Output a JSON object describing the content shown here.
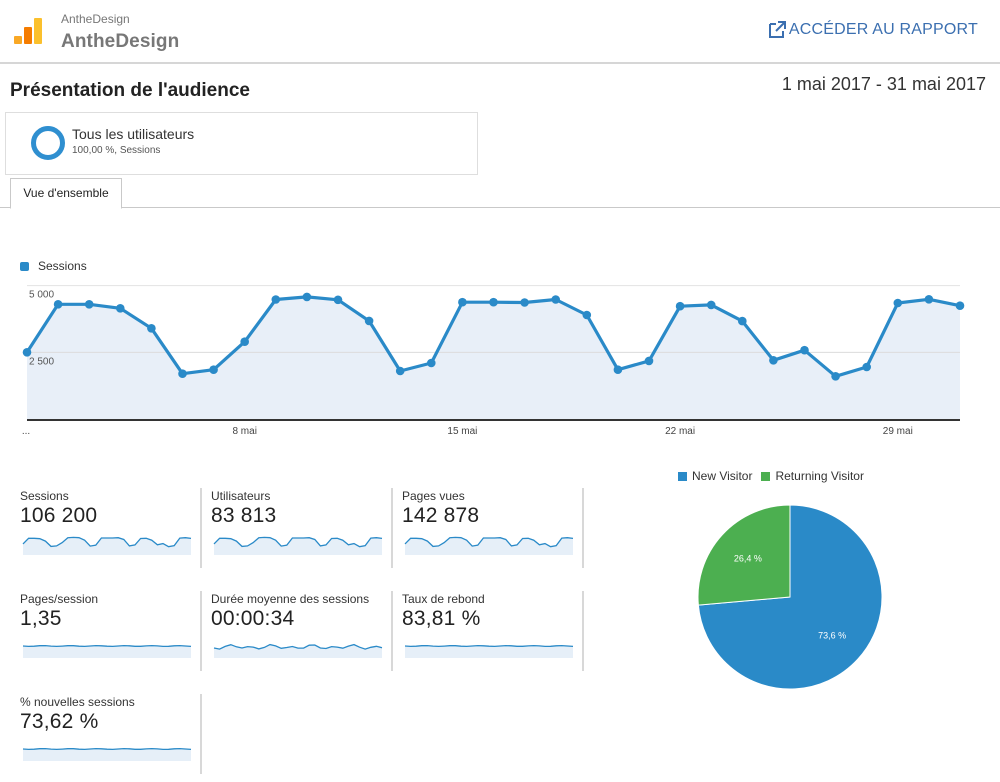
{
  "header": {
    "property_small": "AntheDesign",
    "property_big": "AntheDesign",
    "report_link": "ACCÉDER AU RAPPORT",
    "logo_icon": "analytics-bars-icon",
    "link_icon": "open-in-new-icon"
  },
  "page": {
    "title": "Présentation de l'audience",
    "date_range": "1 mai 2017 - 31 mai 2017"
  },
  "segment": {
    "name": "Tous les utilisateurs",
    "sub": "100,00 %, Sessions",
    "icon": "segment-ring-icon"
  },
  "tabs": [
    {
      "label": "Vue d'ensemble",
      "active": true
    }
  ],
  "colors": {
    "accent": "#2a8ac8",
    "green": "#4caf50",
    "link": "#3b6fb0",
    "area": "#e8eff8"
  },
  "chart_data": [
    {
      "type": "line",
      "legend": "Sessions",
      "x_labels": [
        "...",
        "8 mai",
        "15 mai",
        "22 mai",
        "29 mai"
      ],
      "y_ticks": [
        "5 000",
        "2 500"
      ],
      "ylim": [
        0,
        5000
      ],
      "series": [
        {
          "name": "Sessions",
          "values": [
            2500,
            4300,
            4300,
            4150,
            3400,
            1700,
            1850,
            2900,
            4480,
            4580,
            4470,
            3680,
            1800,
            2100,
            4380,
            4380,
            4370,
            4480,
            3900,
            1850,
            2180,
            4230,
            4280,
            3670,
            2200,
            2580,
            1600,
            1950,
            4350,
            4490,
            4250
          ]
        }
      ]
    },
    {
      "type": "pie",
      "legend": [
        "New Visitor",
        "Returning Visitor"
      ],
      "slices": [
        {
          "name": "New Visitor",
          "value": 73.6,
          "label": "73,6 %",
          "color": "#2a8ac8"
        },
        {
          "name": "Returning Visitor",
          "value": 26.4,
          "label": "26,4 %",
          "color": "#4caf50"
        }
      ]
    }
  ],
  "metrics": [
    {
      "label": "Sessions",
      "value": "106 200",
      "spark": "wave"
    },
    {
      "label": "Utilisateurs",
      "value": "83 813",
      "spark": "wave"
    },
    {
      "label": "Pages vues",
      "value": "142 878",
      "spark": "wave"
    },
    {
      "label": "Pages/session",
      "value": "1,35",
      "spark": "flat"
    },
    {
      "label": "Durée moyenne des sessions",
      "value": "00:00:34",
      "spark": "jitter"
    },
    {
      "label": "Taux de rebond",
      "value": "83,81 %",
      "spark": "flat"
    },
    {
      "label": "% nouvelles sessions",
      "value": "73,62 %",
      "spark": "flat"
    }
  ]
}
